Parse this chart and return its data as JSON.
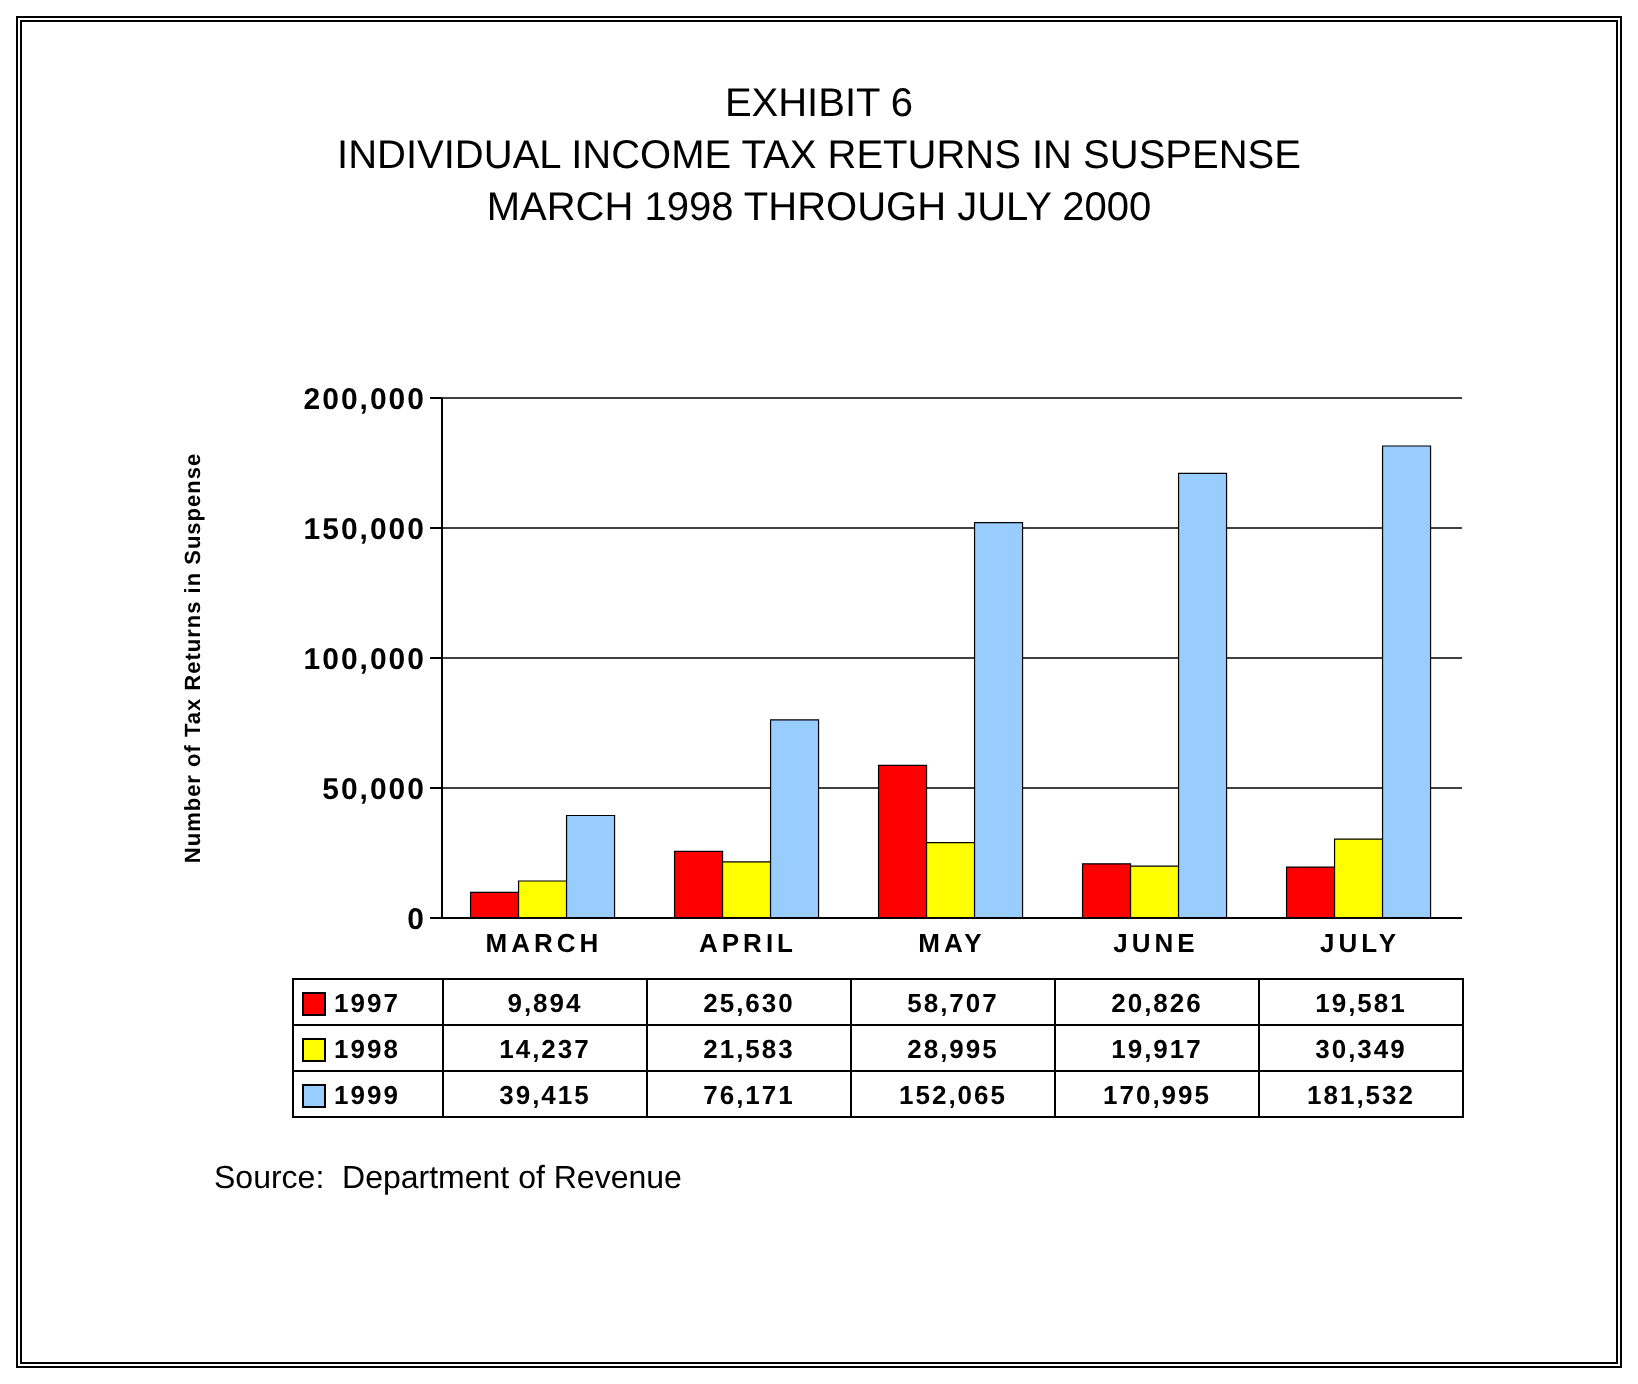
{
  "chart_data": {
    "type": "bar",
    "title": "EXHIBIT 6",
    "subtitle": "INDIVIDUAL INCOME TAX RETURNS IN SUSPENSE\nMARCH 1998 THROUGH JULY 2000",
    "ylabel": "Number of Tax Returns in Suspense",
    "categories": [
      "MARCH",
      "APRIL",
      "MAY",
      "JUNE",
      "JULY"
    ],
    "series": [
      {
        "name": "1997",
        "color": "#ff0000",
        "values": [
          9894,
          25630,
          58707,
          20826,
          19581
        ],
        "value_labels": [
          "9,894",
          "25,630",
          "58,707",
          "20,826",
          "19,581"
        ]
      },
      {
        "name": "1998",
        "color": "#ffff00",
        "values": [
          14237,
          21583,
          28995,
          19917,
          30349
        ],
        "value_labels": [
          "14,237",
          "21,583",
          "28,995",
          "19,917",
          "30,349"
        ]
      },
      {
        "name": "1999",
        "color": "#99ccff",
        "values": [
          39415,
          76171,
          152065,
          170995,
          181532
        ],
        "value_labels": [
          "39,415",
          "76,171",
          "152,065",
          "170,995",
          "181,532"
        ]
      }
    ],
    "ylim": [
      0,
      200000
    ],
    "yticks": [
      {
        "value": 0,
        "label": "0"
      },
      {
        "value": 50000,
        "label": "50,000"
      },
      {
        "value": 100000,
        "label": "100,000"
      },
      {
        "value": 150000,
        "label": "150,000"
      },
      {
        "value": 200000,
        "label": "200,000"
      }
    ],
    "grid": "y",
    "legend": "bottom",
    "annotations": [
      "Source:  Department of Revenue"
    ]
  }
}
